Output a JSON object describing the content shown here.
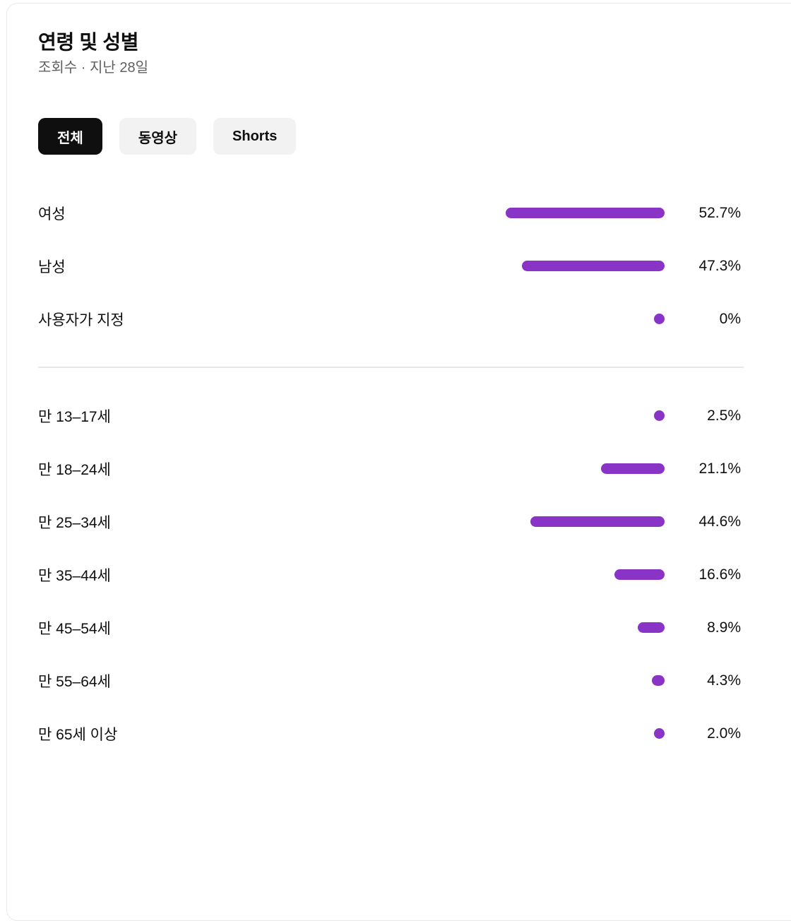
{
  "header": {
    "title": "연령 및 성별",
    "subtitle": "조회수 · 지난 28일"
  },
  "tabs": [
    {
      "key": "all",
      "label": "전체",
      "active": true
    },
    {
      "key": "videos",
      "label": "동영상",
      "active": false
    },
    {
      "key": "shorts",
      "label": "Shorts",
      "active": false
    }
  ],
  "chart_data": {
    "type": "bar",
    "title": "연령 및 성별",
    "subtitle": "조회수 · 지난 28일",
    "orientation": "horizontal",
    "bar_alignment": "right",
    "unit": "%",
    "xlim": [
      0,
      100
    ],
    "grid": false,
    "legend": false,
    "bar_color": "#8933c7",
    "groups": [
      {
        "name": "gender",
        "categories": [
          "여성",
          "남성",
          "사용자가 지정"
        ],
        "values": [
          52.7,
          47.3,
          0
        ],
        "value_labels": [
          "52.7%",
          "47.3%",
          "0%"
        ]
      },
      {
        "name": "age",
        "categories": [
          "만 13–17세",
          "만 18–24세",
          "만 25–34세",
          "만 35–44세",
          "만 45–54세",
          "만 55–64세",
          "만 65세 이상"
        ],
        "values": [
          2.5,
          21.1,
          44.6,
          16.6,
          8.9,
          4.3,
          2.0
        ],
        "value_labels": [
          "2.5%",
          "21.1%",
          "44.6%",
          "16.6%",
          "8.9%",
          "4.3%",
          "2.0%"
        ]
      }
    ]
  },
  "colors": {
    "bar": "#8933c7",
    "tab_active_bg": "#0f0f0f",
    "tab_active_text": "#ffffff",
    "tab_inactive_bg": "#f2f2f2",
    "text_primary": "#0f0f0f",
    "text_secondary": "#606060",
    "divider": "#e6e6e6",
    "card_border": "#eaeaea",
    "background": "#ffffff"
  }
}
